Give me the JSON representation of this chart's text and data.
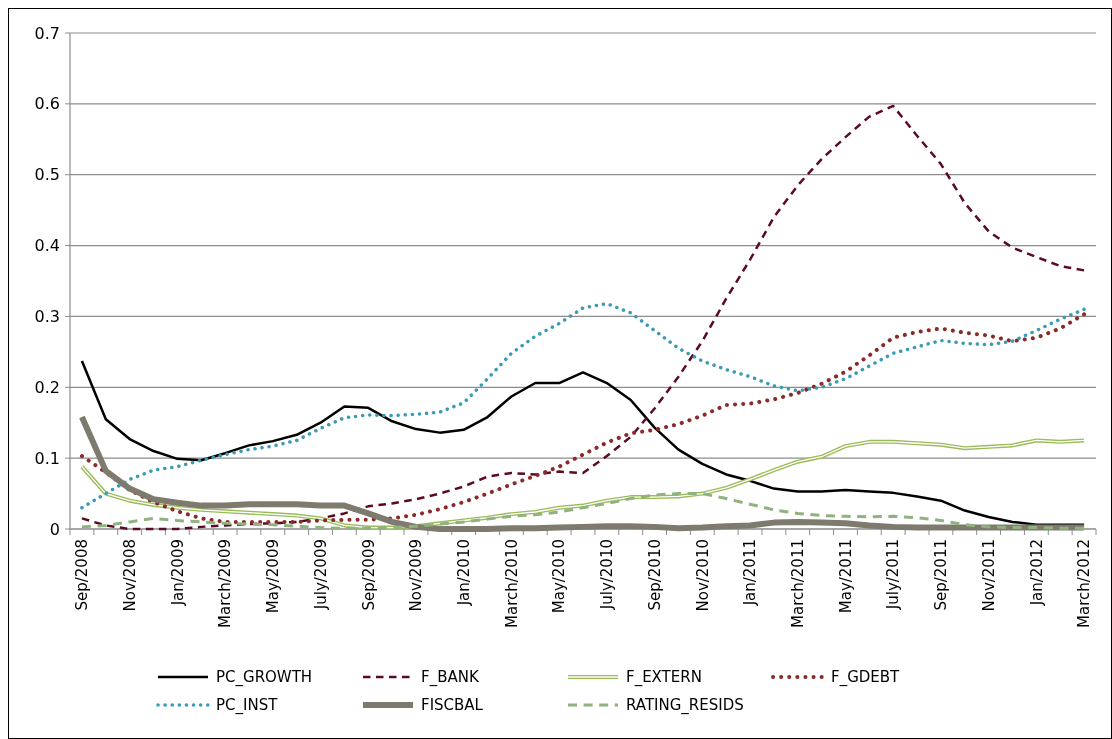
{
  "chart_data": {
    "type": "line",
    "categories": [
      "Sep/2008",
      null,
      "Nov/2008",
      null,
      "Jan/2009",
      null,
      "March/2009",
      null,
      "May/2009",
      null,
      "July/2009",
      null,
      "Sep/2009",
      null,
      "Nov/2009",
      null,
      "Jan/2010",
      null,
      "March/2010",
      null,
      "May/2010",
      null,
      "July/2010",
      null,
      "Sep/2010",
      null,
      "Nov/2010",
      null,
      "Jan/2011",
      null,
      "March/2011",
      null,
      "May/2011",
      null,
      "July/2011",
      null,
      "Sep/2011",
      null,
      "Nov/2011",
      null,
      "Jan/2012",
      null,
      "March/2012"
    ],
    "ylim": [
      0,
      0.7
    ],
    "yticks": [
      0,
      0.1,
      0.2,
      0.3,
      0.4,
      0.5,
      0.6,
      0.7
    ],
    "grid": "y",
    "legend": "bottom",
    "marker": "none",
    "series": [
      {
        "name": "PC_GROWTH",
        "color": "#000000",
        "line_style": "solid",
        "values": [
          0.237,
          0.155,
          0.127,
          0.11,
          0.099,
          0.097,
          0.107,
          0.118,
          0.124,
          0.133,
          0.15,
          0.173,
          0.171,
          0.152,
          0.141,
          0.136,
          0.14,
          0.158,
          0.187,
          0.206,
          0.206,
          0.221,
          0.206,
          0.182,
          0.143,
          0.112,
          0.092,
          0.077,
          0.068,
          0.057,
          0.053,
          0.053,
          0.055,
          0.053,
          0.051,
          0.046,
          0.04,
          0.026,
          0.017,
          0.01,
          0.006,
          0.006,
          0.006
        ]
      },
      {
        "name": "F_BANK",
        "color": "#5c0a22",
        "line_style": "dashed",
        "values": [
          0.015,
          0.005,
          0.0,
          0.0,
          0.0,
          0.003,
          0.005,
          0.007,
          0.008,
          0.01,
          0.015,
          0.022,
          0.032,
          0.036,
          0.042,
          0.05,
          0.06,
          0.074,
          0.079,
          0.077,
          0.081,
          0.079,
          0.103,
          0.13,
          0.17,
          0.215,
          0.265,
          0.325,
          0.38,
          0.44,
          0.485,
          0.522,
          0.553,
          0.582,
          0.597,
          0.555,
          0.515,
          0.46,
          0.42,
          0.397,
          0.384,
          0.371,
          0.365
        ]
      },
      {
        "name": "F_EXTERN",
        "color": "#9bbb59",
        "line_style": "solid",
        "values": [
          0.088,
          0.05,
          0.04,
          0.034,
          0.03,
          0.027,
          0.025,
          0.023,
          0.021,
          0.019,
          0.015,
          0.005,
          0.002,
          0.002,
          0.004,
          0.008,
          0.012,
          0.016,
          0.021,
          0.024,
          0.03,
          0.033,
          0.04,
          0.045,
          0.045,
          0.046,
          0.05,
          0.058,
          0.07,
          0.083,
          0.095,
          0.102,
          0.117,
          0.123,
          0.123,
          0.121,
          0.119,
          0.114,
          0.116,
          0.118,
          0.125,
          0.123,
          0.125
        ]
      },
      {
        "name": "F_GDEBT",
        "color": "#8b2a2a",
        "line_style": "dotted",
        "values": [
          0.103,
          0.08,
          0.055,
          0.038,
          0.025,
          0.015,
          0.01,
          0.01,
          0.01,
          0.01,
          0.012,
          0.013,
          0.013,
          0.015,
          0.02,
          0.028,
          0.038,
          0.05,
          0.063,
          0.075,
          0.088,
          0.105,
          0.122,
          0.135,
          0.14,
          0.148,
          0.16,
          0.175,
          0.177,
          0.183,
          0.192,
          0.205,
          0.222,
          0.245,
          0.27,
          0.278,
          0.283,
          0.277,
          0.273,
          0.265,
          0.27,
          0.283,
          0.303
        ]
      },
      {
        "name": "PC_INST",
        "color": "#3a9bb5",
        "line_style": "dotted",
        "values": [
          0.03,
          0.05,
          0.07,
          0.083,
          0.088,
          0.097,
          0.105,
          0.112,
          0.117,
          0.125,
          0.142,
          0.157,
          0.161,
          0.16,
          0.162,
          0.165,
          0.178,
          0.212,
          0.248,
          0.272,
          0.29,
          0.312,
          0.318,
          0.305,
          0.28,
          0.255,
          0.237,
          0.225,
          0.215,
          0.202,
          0.195,
          0.2,
          0.212,
          0.23,
          0.248,
          0.257,
          0.266,
          0.262,
          0.26,
          0.265,
          0.28,
          0.296,
          0.31
        ]
      },
      {
        "name": "FISCBAL",
        "color": "#7f7a6e",
        "line_style": "solid",
        "values": [
          0.158,
          0.082,
          0.057,
          0.042,
          0.037,
          0.033,
          0.033,
          0.035,
          0.035,
          0.035,
          0.033,
          0.033,
          0.022,
          0.01,
          0.003,
          0.0,
          0.0,
          0.0,
          0.001,
          0.001,
          0.002,
          0.003,
          0.004,
          0.004,
          0.003,
          0.001,
          0.002,
          0.004,
          0.005,
          0.009,
          0.01,
          0.009,
          0.008,
          0.005,
          0.003,
          0.002,
          0.002,
          0.002,
          0.002,
          0.002,
          0.002,
          0.002,
          0.002
        ]
      },
      {
        "name": "RATING_RESIDS",
        "color": "#8fb27f",
        "line_style": "dashed",
        "values": [
          0.003,
          0.005,
          0.01,
          0.015,
          0.012,
          0.01,
          0.008,
          0.007,
          0.006,
          0.004,
          0.002,
          0.001,
          0.001,
          0.002,
          0.004,
          0.007,
          0.01,
          0.014,
          0.018,
          0.02,
          0.024,
          0.03,
          0.036,
          0.043,
          0.048,
          0.05,
          0.05,
          0.043,
          0.035,
          0.027,
          0.022,
          0.019,
          0.018,
          0.017,
          0.018,
          0.016,
          0.012,
          0.006,
          0.003,
          0.002,
          0.002,
          0.001,
          0.001
        ]
      }
    ]
  }
}
